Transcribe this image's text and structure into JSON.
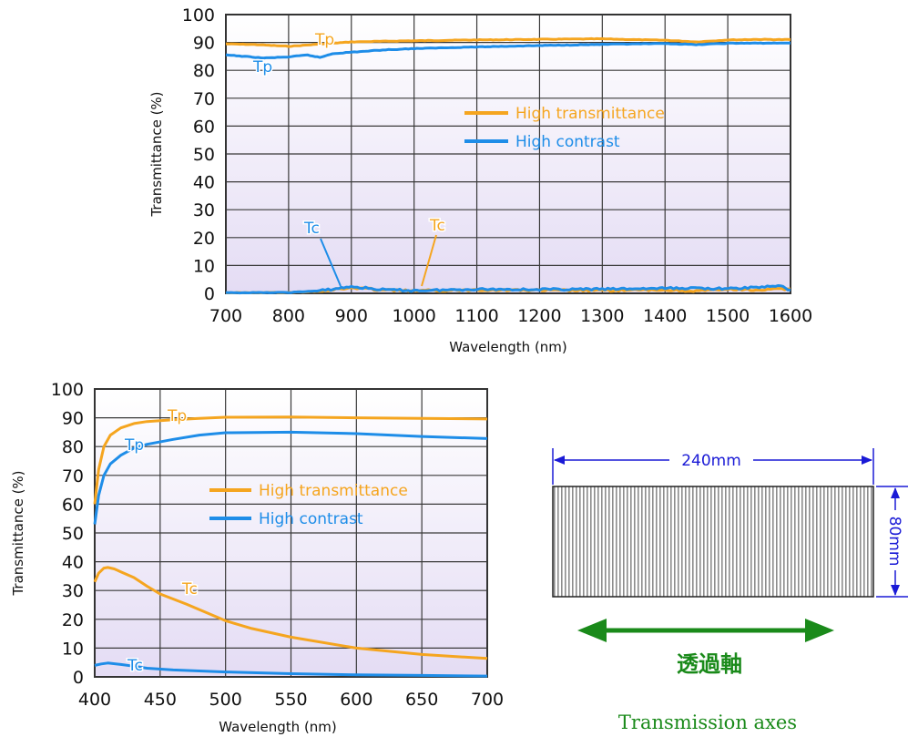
{
  "colors": {
    "high_transmittance": "#f5a51f",
    "high_contrast": "#1e8de8",
    "arrow_green": "#1a8a1a",
    "dimension_blue": "#1a1ad6"
  },
  "chart_data": [
    {
      "type": "line",
      "xlabel": "Wavelength (nm)",
      "ylabel": "Transmittance (%)",
      "xlim": [
        700,
        1600
      ],
      "ylim": [
        0,
        100
      ],
      "xticks": [
        "700",
        "800",
        "900",
        "1000",
        "1100",
        "1200",
        "1300",
        "1400",
        "1500",
        "1600"
      ],
      "yticks": [
        "0",
        "10",
        "20",
        "30",
        "40",
        "50",
        "60",
        "70",
        "80",
        "90",
        "100"
      ],
      "grid": true,
      "legend": [
        {
          "label": "High transmittance",
          "color": "#f5a51f"
        },
        {
          "label": "High contrast",
          "color": "#1e8de8"
        }
      ],
      "annotations": [
        {
          "text": "Tp",
          "color": "#f5a51f"
        },
        {
          "text": "Tp",
          "color": "#1e8de8"
        },
        {
          "text": "Tc",
          "color": "#1e8de8"
        },
        {
          "text": "Tc",
          "color": "#f5a51f"
        }
      ],
      "series": [
        {
          "name": "High transmittance",
          "curve": "Tp",
          "color": "#f5a51f",
          "x": [
            700,
            750,
            800,
            850,
            900,
            950,
            1000,
            1100,
            1200,
            1300,
            1350,
            1400,
            1450,
            1500,
            1550,
            1600
          ],
          "y": [
            89.5,
            89.2,
            88.6,
            89.4,
            90.2,
            90.4,
            90.6,
            90.9,
            91.1,
            91.3,
            91.0,
            90.8,
            90.2,
            90.9,
            91.1,
            91.0
          ]
        },
        {
          "name": "High contrast",
          "curve": "Tp",
          "color": "#1e8de8",
          "x": [
            700,
            730,
            760,
            800,
            830,
            850,
            870,
            900,
            950,
            1000,
            1100,
            1200,
            1300,
            1400,
            1450,
            1500,
            1600
          ],
          "y": [
            85.5,
            85.0,
            84.4,
            84.8,
            85.5,
            84.6,
            86.0,
            86.5,
            87.3,
            87.8,
            88.4,
            88.9,
            89.3,
            89.6,
            89.2,
            89.7,
            89.8
          ]
        },
        {
          "name": "High transmittance",
          "curve": "Tc",
          "color": "#f5a51f",
          "x": [
            700,
            800,
            850,
            880,
            900,
            950,
            1000,
            1050,
            1100,
            1200,
            1300,
            1400,
            1450,
            1500,
            1550,
            1600
          ],
          "y": [
            0.2,
            0.3,
            0.8,
            1.5,
            2.0,
            1.2,
            0.9,
            1.0,
            1.3,
            1.1,
            1.0,
            1.2,
            0.8,
            1.4,
            1.2,
            1.6
          ]
        },
        {
          "name": "High contrast",
          "curve": "Tc",
          "color": "#1e8de8",
          "x": [
            700,
            800,
            850,
            880,
            900,
            950,
            1000,
            1050,
            1100,
            1200,
            1300,
            1400,
            1450,
            1500,
            1550,
            1580,
            1600
          ],
          "y": [
            0.2,
            0.3,
            0.9,
            1.8,
            2.4,
            1.3,
            1.0,
            1.2,
            1.5,
            1.4,
            1.5,
            1.8,
            1.9,
            1.6,
            2.2,
            2.8,
            1.2
          ]
        }
      ]
    },
    {
      "type": "line",
      "xlabel": "Wavelength (nm)",
      "ylabel": "Transmittance (%)",
      "xlim": [
        400,
        700
      ],
      "ylim": [
        0,
        100
      ],
      "xticks": [
        "400",
        "450",
        "500",
        "550",
        "600",
        "650",
        "700"
      ],
      "yticks": [
        "0",
        "10",
        "20",
        "30",
        "40",
        "50",
        "60",
        "70",
        "80",
        "90",
        "100"
      ],
      "grid": true,
      "legend": [
        {
          "label": "High transmittance",
          "color": "#f5a51f"
        },
        {
          "label": "High contrast",
          "color": "#1e8de8"
        }
      ],
      "annotations": [
        {
          "text": "Tp",
          "color": "#f5a51f"
        },
        {
          "text": "Tp",
          "color": "#1e8de8"
        },
        {
          "text": "Tc",
          "color": "#f5a51f"
        },
        {
          "text": "Tc",
          "color": "#1e8de8"
        }
      ],
      "series": [
        {
          "name": "High transmittance",
          "curve": "Tp",
          "color": "#f5a51f",
          "x": [
            400,
            403,
            407,
            412,
            420,
            430,
            440,
            460,
            480,
            500,
            550,
            600,
            650,
            700
          ],
          "y": [
            60,
            72,
            80,
            84,
            86.5,
            88,
            88.7,
            89.3,
            89.8,
            90.2,
            90.3,
            90.0,
            89.8,
            89.6
          ]
        },
        {
          "name": "High contrast",
          "curve": "Tp",
          "color": "#1e8de8",
          "x": [
            400,
            403,
            407,
            412,
            420,
            430,
            440,
            460,
            480,
            500,
            550,
            600,
            650,
            700
          ],
          "y": [
            53,
            63,
            70,
            74,
            77,
            79.5,
            80.8,
            82.5,
            84,
            84.8,
            85,
            84.5,
            83.5,
            82.8
          ]
        },
        {
          "name": "High transmittance",
          "curve": "Tc",
          "color": "#f5a51f",
          "x": [
            400,
            403,
            407,
            410,
            415,
            420,
            430,
            440,
            450,
            470,
            500,
            520,
            550,
            600,
            650,
            700
          ],
          "y": [
            33,
            36,
            37.8,
            38,
            37.5,
            36.5,
            34.5,
            31.5,
            28.8,
            25.3,
            19.5,
            16.8,
            13.8,
            10,
            7.8,
            6.4
          ]
        },
        {
          "name": "High contrast",
          "curve": "Tc",
          "color": "#1e8de8",
          "x": [
            400,
            405,
            410,
            420,
            430,
            440,
            460,
            500,
            550,
            600,
            650,
            700
          ],
          "y": [
            4,
            4.5,
            4.8,
            4.3,
            3.7,
            3.0,
            2.4,
            1.7,
            1.1,
            0.7,
            0.5,
            0.3
          ]
        }
      ]
    }
  ],
  "diagram": {
    "width_label": "240mm",
    "height_label": "80mm",
    "axis_label_jp": "透過軸",
    "axis_label_en": "Transmission axes"
  }
}
